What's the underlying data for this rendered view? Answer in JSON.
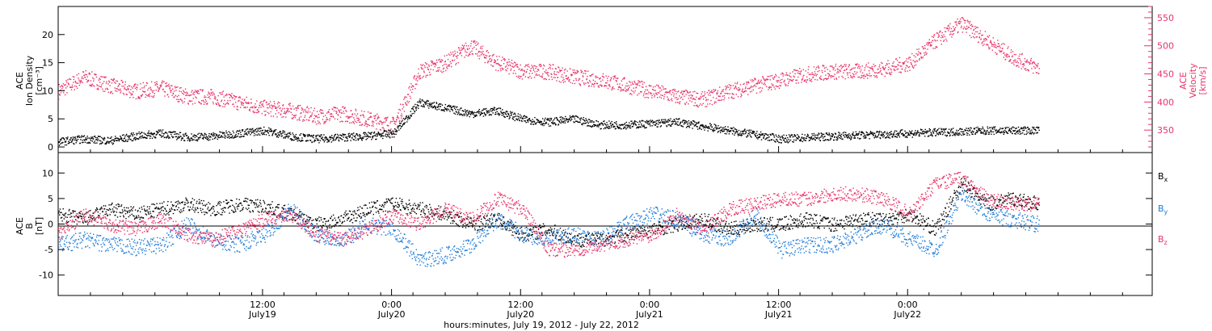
{
  "chart_data": [
    {
      "type": "scatter",
      "panel": "top",
      "ylabel_left": [
        "ACE",
        "Ion Density",
        "[cm⁻³]"
      ],
      "ylabel_right": [
        "ACE",
        "Velocity",
        "[km/s]"
      ],
      "ylim_left": [
        -1,
        25
      ],
      "ylim_right": [
        310,
        570
      ],
      "yticks_left": [
        "0",
        "5",
        "10",
        "15",
        "20"
      ],
      "yticks_right": [
        "350",
        "400",
        "450",
        "500",
        "550"
      ],
      "series": [
        {
          "axis": "left",
          "color": "#000000",
          "x": [
            0.0,
            0.1,
            0.2,
            0.3,
            0.4,
            0.5,
            0.6,
            0.7,
            0.8,
            0.9,
            1.0,
            1.1,
            1.2,
            1.3,
            1.4,
            1.5,
            1.6,
            1.7,
            1.8,
            1.9,
            2.0,
            2.1,
            2.2,
            2.4,
            2.6,
            2.8,
            3.0,
            3.3,
            3.6,
            3.8
          ],
          "values": [
            1.0,
            1.5,
            1.2,
            2.0,
            2.5,
            1.8,
            2.0,
            2.5,
            3.0,
            2.0,
            1.5,
            1.8,
            2.0,
            2.5,
            8.0,
            7.0,
            6.0,
            6.5,
            5.0,
            4.5,
            5.0,
            4.0,
            4.0,
            4.5,
            3.0,
            1.5,
            2.0,
            2.5,
            3.0,
            3.0
          ]
        },
        {
          "axis": "right",
          "color": "#e8336a",
          "x": [
            0.0,
            0.1,
            0.2,
            0.3,
            0.4,
            0.5,
            0.6,
            0.7,
            0.8,
            0.9,
            1.0,
            1.1,
            1.2,
            1.3,
            1.4,
            1.5,
            1.6,
            1.7,
            1.8,
            1.9,
            2.0,
            2.1,
            2.2,
            2.3,
            2.4,
            2.5,
            2.6,
            2.7,
            2.8,
            2.9,
            3.0,
            3.1,
            3.2,
            3.3,
            3.4,
            3.5,
            3.6,
            3.7,
            3.8
          ],
          "values": [
            420,
            445,
            430,
            420,
            425,
            410,
            410,
            400,
            390,
            385,
            375,
            380,
            370,
            360,
            455,
            470,
            500,
            470,
            455,
            455,
            445,
            440,
            430,
            420,
            410,
            405,
            420,
            430,
            440,
            450,
            455,
            455,
            460,
            470,
            510,
            540,
            510,
            480,
            460
          ]
        }
      ]
    },
    {
      "type": "scatter",
      "panel": "bottom",
      "ylabel_left": [
        "ACE",
        "B",
        "[nT]"
      ],
      "ylim": [
        -14,
        14
      ],
      "yticks": [
        "-10",
        "-5",
        "0",
        "5",
        "10"
      ],
      "legend": [
        "Bx",
        "By",
        "Bz"
      ],
      "legend_placement": "right",
      "series": [
        {
          "name": "Bx",
          "color": "#000000",
          "x": [
            0.0,
            0.1,
            0.2,
            0.3,
            0.4,
            0.5,
            0.6,
            0.7,
            0.8,
            0.9,
            1.0,
            1.1,
            1.2,
            1.3,
            1.4,
            1.5,
            1.6,
            1.7,
            1.8,
            1.9,
            2.0,
            2.1,
            2.2,
            2.3,
            2.4,
            2.5,
            2.6,
            2.7,
            2.8,
            2.9,
            3.0,
            3.1,
            3.2,
            3.3,
            3.4,
            3.5,
            3.6,
            3.7,
            3.8
          ],
          "values": [
            2.0,
            1.0,
            3.0,
            2.0,
            3.0,
            4.0,
            3.0,
            4.0,
            3.5,
            2.0,
            0.0,
            1.0,
            3.0,
            4.0,
            3.0,
            2.0,
            0.0,
            1.0,
            -2.0,
            -1.0,
            -3.0,
            -3.0,
            -2.0,
            -1.0,
            0.0,
            1.0,
            -1.0,
            0.0,
            0.0,
            1.0,
            0.0,
            1.0,
            1.0,
            2.0,
            -1.0,
            8.0,
            4.0,
            5.0,
            4.0
          ]
        },
        {
          "name": "By",
          "color": "#1f7bd8",
          "x": [
            0.0,
            0.1,
            0.2,
            0.3,
            0.4,
            0.5,
            0.6,
            0.7,
            0.8,
            0.9,
            1.0,
            1.1,
            1.2,
            1.3,
            1.4,
            1.5,
            1.6,
            1.7,
            1.8,
            1.9,
            2.0,
            2.1,
            2.2,
            2.3,
            2.4,
            2.5,
            2.6,
            2.7,
            2.8,
            2.9,
            3.0,
            3.1,
            3.2,
            3.3,
            3.4,
            3.5,
            3.6,
            3.7,
            3.8
          ],
          "values": [
            -4.0,
            -3.0,
            -4.0,
            -4.5,
            -4.0,
            0.0,
            -3.0,
            -4.0,
            -2.0,
            3.0,
            -2.0,
            -3.0,
            0.0,
            -1.0,
            -7.0,
            -6.0,
            -4.0,
            1.0,
            -2.0,
            -3.0,
            -2.0,
            -3.0,
            0.0,
            2.0,
            1.0,
            -2.0,
            -3.0,
            2.0,
            -5.0,
            -4.0,
            -4.0,
            -2.0,
            0.0,
            -3.0,
            -5.0,
            6.0,
            2.0,
            1.0,
            0.0
          ]
        },
        {
          "name": "Bz",
          "color": "#e8336a",
          "x": [
            0.0,
            0.1,
            0.2,
            0.3,
            0.4,
            0.5,
            0.6,
            0.7,
            0.8,
            0.9,
            1.0,
            1.1,
            1.2,
            1.3,
            1.4,
            1.5,
            1.6,
            1.7,
            1.8,
            1.9,
            2.0,
            2.1,
            2.2,
            2.3,
            2.4,
            2.5,
            2.6,
            2.7,
            2.8,
            2.9,
            3.0,
            3.1,
            3.2,
            3.3,
            3.4,
            3.5,
            3.6,
            3.7,
            3.8
          ],
          "values": [
            -2.0,
            2.0,
            0.0,
            -1.0,
            1.0,
            -2.0,
            -3.0,
            -1.0,
            1.0,
            2.0,
            -2.0,
            -3.0,
            -1.0,
            2.0,
            0.0,
            3.0,
            1.0,
            5.0,
            3.0,
            -5.0,
            -5.0,
            -4.0,
            -3.0,
            -2.0,
            2.0,
            -1.0,
            3.0,
            4.0,
            5.0,
            5.0,
            6.0,
            6.0,
            5.0,
            2.0,
            8.0,
            9.0,
            5.0,
            4.0,
            4.0
          ]
        }
      ]
    }
  ],
  "x_axis": {
    "range": [
      0,
      4.24
    ],
    "ticks": [
      {
        "x": 0.792,
        "time": "12:00",
        "date": "July19"
      },
      {
        "x": 1.292,
        "time": "0:00",
        "date": "July20"
      },
      {
        "x": 1.792,
        "time": "12:00",
        "date": "July20"
      },
      {
        "x": 2.292,
        "time": "0:00",
        "date": "July21"
      },
      {
        "x": 2.792,
        "time": "12:00",
        "date": "July21"
      },
      {
        "x": 3.292,
        "time": "0:00",
        "date": "July22"
      }
    ],
    "label": "hours:minutes, July 19, 2012 - July 22, 2012"
  },
  "legend_labels": {
    "bx": {
      "base": "B",
      "sub": "x"
    },
    "by": {
      "base": "B",
      "sub": "y"
    },
    "bz": {
      "base": "B",
      "sub": "z"
    }
  }
}
